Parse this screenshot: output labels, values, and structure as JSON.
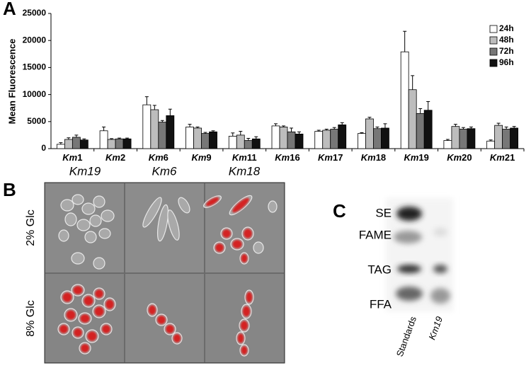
{
  "panel_labels": [
    "A",
    "B",
    "C"
  ],
  "chart_data": {
    "type": "bar",
    "y_label": "Mean Fluorescence",
    "categories": [
      "Km1",
      "Km2",
      "Km6",
      "Km9",
      "Km11",
      "Km16",
      "Km17",
      "Km18",
      "Km19",
      "Km20",
      "Km21"
    ],
    "series": [
      {
        "name": "24h",
        "color": "#ffffff",
        "values": [
          800,
          3300,
          8100,
          4000,
          2300,
          4200,
          3200,
          2800,
          17900,
          1500,
          1400
        ],
        "errors": [
          300,
          700,
          1500,
          500,
          600,
          400,
          200,
          150,
          3800,
          200,
          200
        ]
      },
      {
        "name": "48h",
        "color": "#bdbdbd",
        "values": [
          1700,
          1700,
          7200,
          3800,
          2500,
          4000,
          3400,
          5500,
          10900,
          4100,
          4300
        ],
        "errors": [
          300,
          150,
          800,
          200,
          700,
          200,
          200,
          300,
          2600,
          400,
          400
        ]
      },
      {
        "name": "72h",
        "color": "#777777",
        "values": [
          2100,
          1800,
          4900,
          2800,
          1500,
          3100,
          3600,
          3700,
          6500,
          3600,
          3600
        ],
        "errors": [
          400,
          150,
          300,
          200,
          400,
          700,
          300,
          300,
          900,
          300,
          400
        ]
      },
      {
        "name": "96h",
        "color": "#111111",
        "values": [
          1600,
          1800,
          6100,
          3100,
          1800,
          2700,
          4400,
          3800,
          7100,
          3700,
          3800
        ],
        "errors": [
          200,
          150,
          1200,
          200,
          400,
          400,
          400,
          800,
          1600,
          300,
          300
        ]
      }
    ],
    "ylim": [
      0,
      25000
    ],
    "yticks": [
      0,
      5000,
      10000,
      15000,
      20000,
      25000
    ],
    "legend": "upper right"
  },
  "microscopy": {
    "columns": [
      "Km19",
      "Km6",
      "Km18"
    ],
    "rows": [
      "2% Glc",
      "8% Glc"
    ]
  },
  "tlc": {
    "bands": [
      "SE",
      "FAME",
      "TAG",
      "FFA"
    ],
    "lanes": [
      "Standards",
      "Km19"
    ]
  }
}
